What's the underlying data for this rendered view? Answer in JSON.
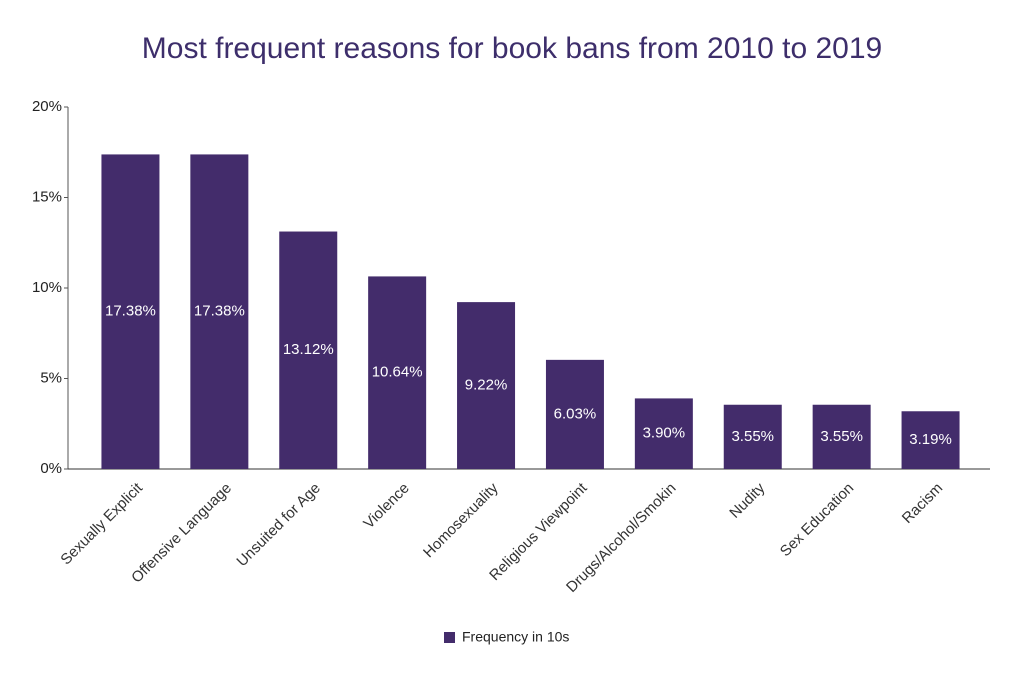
{
  "chart_data": {
    "type": "bar",
    "title": "Most frequent reasons for book bans from 2010 to 2019",
    "categories": [
      "Sexually Explicit",
      "Offensive Language",
      "Unsuited for Age",
      "Violence",
      "Homosexuality",
      "Religious Viewpoint",
      "Drugs/Alcohol/Smokin",
      "Nudity",
      "Sex Education",
      "Racism"
    ],
    "series": [
      {
        "name": "Frequency in 10s",
        "color": "#432c6b",
        "values": [
          17.38,
          17.38,
          13.12,
          10.64,
          9.22,
          6.03,
          3.9,
          3.55,
          3.55,
          3.19
        ],
        "value_labels": [
          "17.38%",
          "17.38%",
          "13.12%",
          "10.64%",
          "9.22%",
          "6.03%",
          "3.90%",
          "3.55%",
          "3.55%",
          "3.19%"
        ]
      }
    ],
    "ylim": [
      0,
      20
    ],
    "yticks": [
      {
        "value": 0,
        "label": "0%"
      },
      {
        "value": 5,
        "label": "5%"
      },
      {
        "value": 10,
        "label": "10%"
      },
      {
        "value": 15,
        "label": "15%"
      },
      {
        "value": 20,
        "label": "20%"
      }
    ],
    "grid": false,
    "legend": "bottom"
  }
}
